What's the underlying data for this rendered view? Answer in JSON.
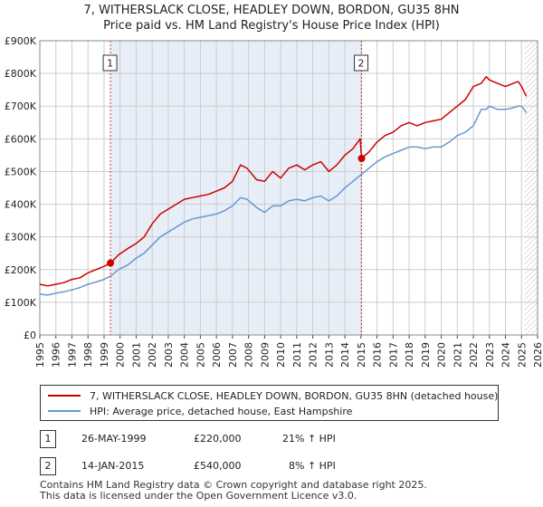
{
  "title_line1": "7, WITHERSLACK CLOSE, HEADLEY DOWN, BORDON, GU35 8HN",
  "title_line2": "Price paid vs. HM Land Registry's House Price Index (HPI)",
  "colors": {
    "property": "#cc0000",
    "hpi": "#6699cc",
    "shade": "#e8eef8",
    "grid": "#cccccc"
  },
  "chart_data": {
    "type": "line",
    "title": "7, WITHERSLACK CLOSE, HEADLEY DOWN, BORDON, GU35 8HN — Price paid vs. HM Land Registry's House Price Index (HPI)",
    "xlabel": "",
    "ylabel": "",
    "xlim": [
      1995,
      2026
    ],
    "ylim": [
      0,
      900000
    ],
    "x_ticks": [
      "1995",
      "1996",
      "1997",
      "1998",
      "1999",
      "2000",
      "2001",
      "2002",
      "2003",
      "2004",
      "2005",
      "2006",
      "2007",
      "2008",
      "2009",
      "2010",
      "2011",
      "2012",
      "2013",
      "2014",
      "2015",
      "2016",
      "2017",
      "2018",
      "2019",
      "2020",
      "2021",
      "2022",
      "2023",
      "2024",
      "2025",
      "2026"
    ],
    "y_ticks": [
      {
        "value": 0,
        "label": "£0"
      },
      {
        "value": 100000,
        "label": "£100K"
      },
      {
        "value": 200000,
        "label": "£200K"
      },
      {
        "value": 300000,
        "label": "£300K"
      },
      {
        "value": 400000,
        "label": "£400K"
      },
      {
        "value": 500000,
        "label": "£500K"
      },
      {
        "value": 600000,
        "label": "£600K"
      },
      {
        "value": 700000,
        "label": "£700K"
      },
      {
        "value": 800000,
        "label": "£800K"
      },
      {
        "value": 900000,
        "label": "£900K"
      }
    ],
    "shaded_region": [
      1999.4,
      2015.04
    ],
    "hatched_from": 2025.2,
    "series": [
      {
        "name": "7, WITHERSLACK CLOSE, HEADLEY DOWN, BORDON, GU35 8HN (detached house)",
        "color": "#cc0000",
        "x": [
          1995.0,
          1995.5,
          1996.0,
          1996.5,
          1997.0,
          1997.5,
          1998.0,
          1998.5,
          1999.0,
          1999.4,
          1999.9,
          2000.5,
          2001.0,
          2001.5,
          2002.0,
          2002.5,
          2003.0,
          2003.5,
          2004.0,
          2004.5,
          2005.0,
          2005.5,
          2006.0,
          2006.5,
          2007.0,
          2007.5,
          2007.9,
          2008.5,
          2009.0,
          2009.5,
          2010.0,
          2010.5,
          2011.0,
          2011.5,
          2012.0,
          2012.5,
          2013.0,
          2013.5,
          2014.0,
          2014.5,
          2014.95,
          2015.04,
          2015.5,
          2016.0,
          2016.5,
          2017.0,
          2017.5,
          2018.0,
          2018.5,
          2019.0,
          2019.5,
          2020.0,
          2020.5,
          2021.0,
          2021.5,
          2022.0,
          2022.5,
          2022.8,
          2023.0,
          2023.5,
          2024.0,
          2024.5,
          2024.8,
          2025.0,
          2025.3
        ],
        "values": [
          155000,
          150000,
          155000,
          160000,
          170000,
          175000,
          190000,
          200000,
          210000,
          220000,
          245000,
          265000,
          280000,
          300000,
          340000,
          370000,
          385000,
          400000,
          415000,
          420000,
          425000,
          430000,
          440000,
          450000,
          470000,
          520000,
          510000,
          475000,
          470000,
          500000,
          480000,
          510000,
          520000,
          505000,
          520000,
          530000,
          500000,
          520000,
          550000,
          570000,
          600000,
          540000,
          560000,
          590000,
          610000,
          620000,
          640000,
          650000,
          640000,
          650000,
          655000,
          660000,
          680000,
          700000,
          720000,
          760000,
          770000,
          790000,
          780000,
          770000,
          760000,
          770000,
          775000,
          760000,
          730000
        ]
      },
      {
        "name": "HPI: Average price, detached house, East Hampshire",
        "color": "#6699cc",
        "x": [
          1995.0,
          1995.5,
          1996.0,
          1996.5,
          1997.0,
          1997.5,
          1998.0,
          1998.5,
          1999.0,
          1999.4,
          1999.9,
          2000.5,
          2001.0,
          2001.5,
          2002.0,
          2002.5,
          2003.0,
          2003.5,
          2004.0,
          2004.5,
          2005.0,
          2005.5,
          2006.0,
          2006.5,
          2007.0,
          2007.5,
          2007.9,
          2008.5,
          2009.0,
          2009.5,
          2010.0,
          2010.5,
          2011.0,
          2011.5,
          2012.0,
          2012.5,
          2013.0,
          2013.5,
          2014.0,
          2014.5,
          2015.0,
          2015.5,
          2016.0,
          2016.5,
          2017.0,
          2017.5,
          2018.0,
          2018.5,
          2019.0,
          2019.5,
          2020.0,
          2020.5,
          2021.0,
          2021.5,
          2022.0,
          2022.5,
          2022.8,
          2023.0,
          2023.5,
          2024.0,
          2024.5,
          2024.8,
          2025.0,
          2025.3
        ],
        "values": [
          125000,
          122000,
          128000,
          132000,
          138000,
          145000,
          155000,
          162000,
          170000,
          180000,
          200000,
          215000,
          235000,
          250000,
          275000,
          300000,
          315000,
          330000,
          345000,
          355000,
          360000,
          365000,
          370000,
          380000,
          395000,
          420000,
          415000,
          390000,
          375000,
          395000,
          395000,
          410000,
          415000,
          410000,
          420000,
          425000,
          410000,
          425000,
          450000,
          470000,
          490000,
          510000,
          530000,
          545000,
          555000,
          565000,
          575000,
          575000,
          570000,
          575000,
          575000,
          590000,
          610000,
          620000,
          640000,
          690000,
          690000,
          700000,
          690000,
          690000,
          695000,
          700000,
          700000,
          680000
        ]
      }
    ],
    "sale_markers": [
      {
        "id": "1",
        "x": 1999.4,
        "y": 220000
      },
      {
        "id": "2",
        "x": 2015.04,
        "y": 540000
      }
    ],
    "legend": [
      "7, WITHERSLACK CLOSE, HEADLEY DOWN, BORDON, GU35 8HN (detached house)",
      "HPI: Average price, detached house, East Hampshire"
    ]
  },
  "legend": {
    "property_label": "7, WITHERSLACK CLOSE, HEADLEY DOWN, BORDON, GU35 8HN (detached house)",
    "hpi_label": "HPI: Average price, detached house, East Hampshire"
  },
  "transactions": [
    {
      "id": "1",
      "date": "26-MAY-1999",
      "price": "£220,000",
      "hpi_change": "21% ↑ HPI"
    },
    {
      "id": "2",
      "date": "14-JAN-2015",
      "price": "£540,000",
      "hpi_change": "8% ↑ HPI"
    }
  ],
  "footer_line1": "Contains HM Land Registry data © Crown copyright and database right 2025.",
  "footer_line2": "This data is licensed under the Open Government Licence v3.0."
}
